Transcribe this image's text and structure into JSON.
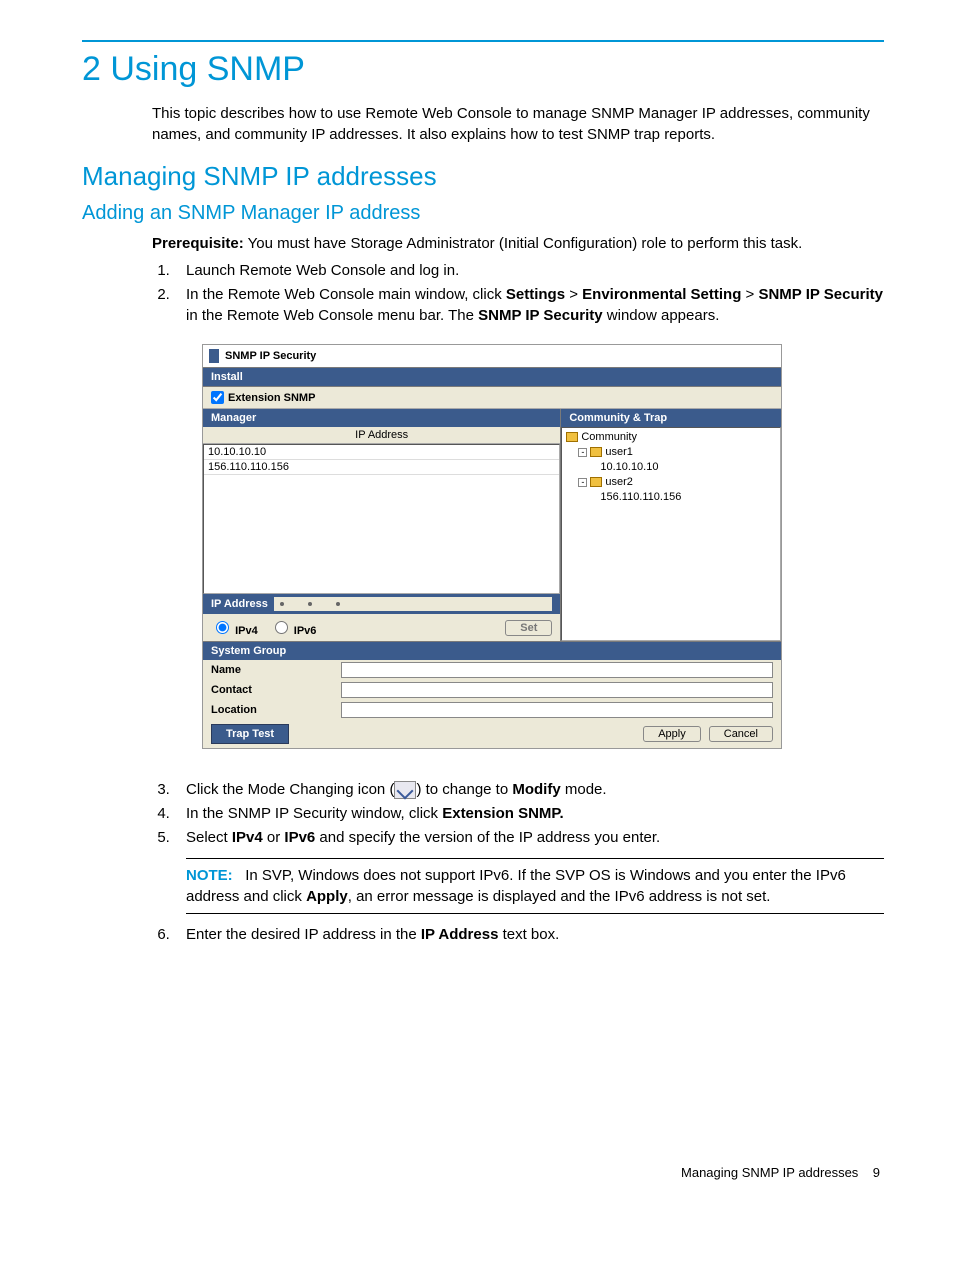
{
  "colors": {
    "accent": "#0096d6",
    "panel_header_bg": "#3b5b8c",
    "panel_bg": "#ece9d8",
    "border": "#888888",
    "white": "#ffffff"
  },
  "chapter": {
    "title": "2 Using SNMP"
  },
  "intro": "This topic describes how to use Remote Web Console to manage SNMP Manager IP addresses, community names, and community IP addresses. It also explains how to test SNMP trap reports.",
  "section": {
    "title": "Managing SNMP IP addresses"
  },
  "subsection": {
    "title": "Adding an SNMP Manager IP address"
  },
  "prerequisite": {
    "label": "Prerequisite:",
    "text": " You must have Storage Administrator (Initial Configuration) role to perform this task."
  },
  "steps_a": {
    "s1": "Launch Remote Web Console and log in.",
    "s2_a": "In the Remote Web Console main window, click ",
    "s2_settings": "Settings",
    "s2_gt1": " > ",
    "s2_env": "Environmental Setting",
    "s2_gt2": " > ",
    "s2_snmp": "SNMP IP Security",
    "s2_b": " in the Remote Web Console menu bar. The ",
    "s2_win": "SNMP IP Security",
    "s2_c": " window appears."
  },
  "screenshot": {
    "title": "SNMP IP Security",
    "tab": "Install",
    "ext_checkbox_label": "Extension SNMP",
    "ext_checked": true,
    "manager_header": "Manager",
    "ip_col_header": "IP Address",
    "ip_rows": {
      "r0": "10.10.10.10",
      "r1": "156.110.110.156"
    },
    "ip_address_label": "IP Address",
    "radio_ipv4": "IPv4",
    "radio_ipv6": "IPv6",
    "radio_selected": "IPv4",
    "set_btn": "Set",
    "community_header": "Community & Trap",
    "tree": {
      "root": "Community",
      "u1": "user1",
      "u1_ip": "10.10.10.10",
      "u2": "user2",
      "u2_ip": "156.110.110.156"
    },
    "sysgroup_header": "System Group",
    "name_label": "Name",
    "contact_label": "Contact",
    "location_label": "Location",
    "name_value": "",
    "contact_value": "",
    "location_value": "",
    "trap_test_btn": "Trap Test",
    "apply_btn": "Apply",
    "cancel_btn": "Cancel"
  },
  "steps_b": {
    "s3_a": "Click the Mode Changing icon (",
    "s3_b": ") to change to ",
    "s3_modify": "Modify",
    "s3_c": " mode.",
    "s4_a": "In the SNMP IP Security window, click ",
    "s4_ext": "Extension SNMP.",
    "s5_a": "Select ",
    "s5_ipv4": "IPv4",
    "s5_or": " or ",
    "s5_ipv6": "IPv6",
    "s5_b": " and specify the version of the IP address you enter."
  },
  "note": {
    "label": "NOTE:",
    "a": "In SVP, Windows does not support IPv6. If the SVP OS is Windows and you enter the IPv6 address and click ",
    "apply": "Apply",
    "b": ", an error message is displayed and the IPv6 address is not set."
  },
  "steps_c": {
    "s6_a": "Enter the desired IP address in the ",
    "s6_ip": "IP Address",
    "s6_b": " text box."
  },
  "footer": {
    "text": "Managing SNMP IP addresses",
    "pagenum": "9"
  }
}
